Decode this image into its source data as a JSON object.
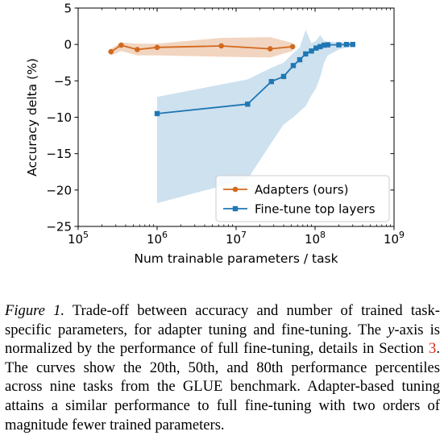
{
  "chart_data": {
    "type": "line",
    "xscale": "log",
    "xlim": [
      100000,
      1000000000
    ],
    "ylim": [
      -25,
      5
    ],
    "xlabel": "Num trainable parameters / task",
    "ylabel": "Accuracy delta (%)",
    "x_ticks": [
      100000,
      1000000,
      10000000,
      100000000,
      1000000000
    ],
    "x_tick_labels": [
      [
        "10",
        "5"
      ],
      [
        "10",
        "6"
      ],
      [
        "10",
        "7"
      ],
      [
        "10",
        "8"
      ],
      [
        "10",
        "9"
      ]
    ],
    "y_ticks": [
      5,
      0,
      -5,
      -10,
      -15,
      -20,
      -25
    ],
    "y_tick_labels": [
      "5",
      "0",
      "−5",
      "−10",
      "−15",
      "−20",
      "−25"
    ],
    "grid": false,
    "legend_position": "lower-right",
    "series": [
      {
        "name": "Adapters (ours)",
        "color": "#d2691e",
        "marker": "circle",
        "x": [
          260000,
          350000,
          560000,
          1000000,
          6500000,
          27000000,
          52000000
        ],
        "y": [
          -1.0,
          -0.1,
          -0.7,
          -0.4,
          -0.2,
          -0.6,
          -0.3
        ],
        "band_upper": [
          -0.6,
          0.3,
          0.1,
          0.1,
          0.9,
          1.0,
          0.2
        ],
        "band_lower": [
          -1.5,
          -0.9,
          -1.5,
          -1.5,
          -1.7,
          -1.8,
          -0.9
        ]
      },
      {
        "name": "Fine-tune top layers",
        "color": "#1f77b4",
        "marker": "square",
        "x": [
          1000000,
          14000000,
          28000000,
          40000000,
          53000000,
          64000000,
          76000000,
          90000000,
          103000000,
          116000000,
          130000000,
          145000000,
          200000000,
          250000000,
          300000000
        ],
        "y": [
          -9.5,
          -8.2,
          -5.1,
          -4.4,
          -2.9,
          -2.1,
          -1.3,
          -0.9,
          -0.5,
          -0.3,
          -0.1,
          -0.05,
          -0.05,
          0.0,
          0.0
        ],
        "band_upper": [
          -7.2,
          -4.8,
          -3.2,
          -2.5,
          -1.2,
          -0.4,
          2.0,
          0.2,
          0.5,
          1.3,
          0.5,
          0.4,
          0.3,
          0.2,
          0.2
        ],
        "band_lower": [
          -21.8,
          -18.5,
          -13.5,
          -11.0,
          -10.0,
          -9.2,
          -8.5,
          -7.0,
          -6.0,
          -4.5,
          -2.5,
          -1.5,
          -0.7,
          -0.4,
          -0.3
        ]
      }
    ]
  },
  "caption": {
    "figure_label": "Figure 1.",
    "text_1": " Trade-off between accuracy and number of trained task-specific parameters, for adapter tuning and fine-tuning. The ",
    "y_var": "y",
    "text_2": "-axis is normalized by the performance of full fine-tuning, details in Section ",
    "section_ref": "3",
    "text_3": ". The curves show the 20th, 50th, and 80th performance percentiles across nine tasks from the GLUE benchmark. Adapter-based tuning attains a similar performance to full fine-tuning with two orders of magnitude fewer trained parameters."
  }
}
